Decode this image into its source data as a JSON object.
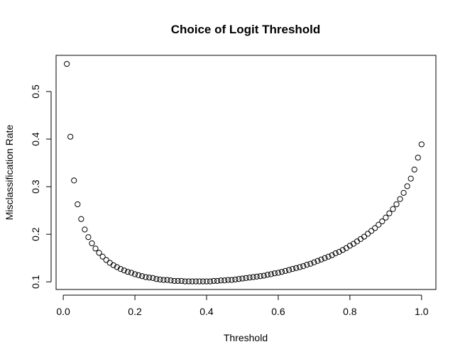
{
  "chart_data": {
    "type": "scatter",
    "title": "Choice of Logit Threshold",
    "xlabel": "Threshold",
    "ylabel": "Misclassification Rate",
    "xlim": [
      -0.02,
      1.04
    ],
    "ylim": [
      0.084,
      0.576
    ],
    "xticks": [
      0.0,
      0.2,
      0.4,
      0.6,
      0.8,
      1.0
    ],
    "xtick_labels": [
      "0.0",
      "0.2",
      "0.4",
      "0.6",
      "0.8",
      "1.0"
    ],
    "yticks": [
      0.1,
      0.2,
      0.3,
      0.4,
      0.5
    ],
    "ytick_labels": [
      "0.1",
      "0.2",
      "0.3",
      "0.4",
      "0.5"
    ],
    "grid": false,
    "marker": "open-circle",
    "x": [
      0.01,
      0.02,
      0.03,
      0.04,
      0.05,
      0.06,
      0.07,
      0.08,
      0.09,
      0.1,
      0.11,
      0.12,
      0.13,
      0.14,
      0.15,
      0.16,
      0.17,
      0.18,
      0.19,
      0.2,
      0.21,
      0.22,
      0.23,
      0.24,
      0.25,
      0.26,
      0.27,
      0.28,
      0.29,
      0.3,
      0.31,
      0.32,
      0.33,
      0.34,
      0.35,
      0.36,
      0.37,
      0.38,
      0.39,
      0.4,
      0.41,
      0.42,
      0.43,
      0.44,
      0.45,
      0.46,
      0.47,
      0.48,
      0.49,
      0.5,
      0.51,
      0.52,
      0.53,
      0.54,
      0.55,
      0.56,
      0.57,
      0.58,
      0.59,
      0.6,
      0.61,
      0.62,
      0.63,
      0.64,
      0.65,
      0.66,
      0.67,
      0.68,
      0.69,
      0.7,
      0.71,
      0.72,
      0.73,
      0.74,
      0.75,
      0.76,
      0.77,
      0.78,
      0.79,
      0.8,
      0.81,
      0.82,
      0.83,
      0.84,
      0.85,
      0.86,
      0.87,
      0.88,
      0.89,
      0.9,
      0.91,
      0.92,
      0.93,
      0.94,
      0.95,
      0.96,
      0.97,
      0.98,
      0.99,
      1.0
    ],
    "y": [
      0.558,
      0.405,
      0.313,
      0.263,
      0.232,
      0.21,
      0.194,
      0.181,
      0.17,
      0.161,
      0.153,
      0.146,
      0.14,
      0.135,
      0.131,
      0.127,
      0.124,
      0.121,
      0.119,
      0.116,
      0.114,
      0.112,
      0.11,
      0.109,
      0.108,
      0.106,
      0.105,
      0.104,
      0.104,
      0.103,
      0.102,
      0.102,
      0.102,
      0.101,
      0.101,
      0.101,
      0.101,
      0.101,
      0.101,
      0.101,
      0.101,
      0.102,
      0.102,
      0.103,
      0.103,
      0.104,
      0.104,
      0.105,
      0.106,
      0.107,
      0.108,
      0.109,
      0.11,
      0.111,
      0.112,
      0.113,
      0.115,
      0.116,
      0.118,
      0.119,
      0.121,
      0.123,
      0.125,
      0.127,
      0.129,
      0.131,
      0.133,
      0.136,
      0.138,
      0.141,
      0.144,
      0.147,
      0.15,
      0.153,
      0.156,
      0.16,
      0.163,
      0.167,
      0.171,
      0.176,
      0.18,
      0.185,
      0.19,
      0.195,
      0.201,
      0.207,
      0.213,
      0.22,
      0.227,
      0.235,
      0.244,
      0.253,
      0.263,
      0.274,
      0.287,
      0.301,
      0.317,
      0.336,
      0.361,
      0.389
    ]
  }
}
